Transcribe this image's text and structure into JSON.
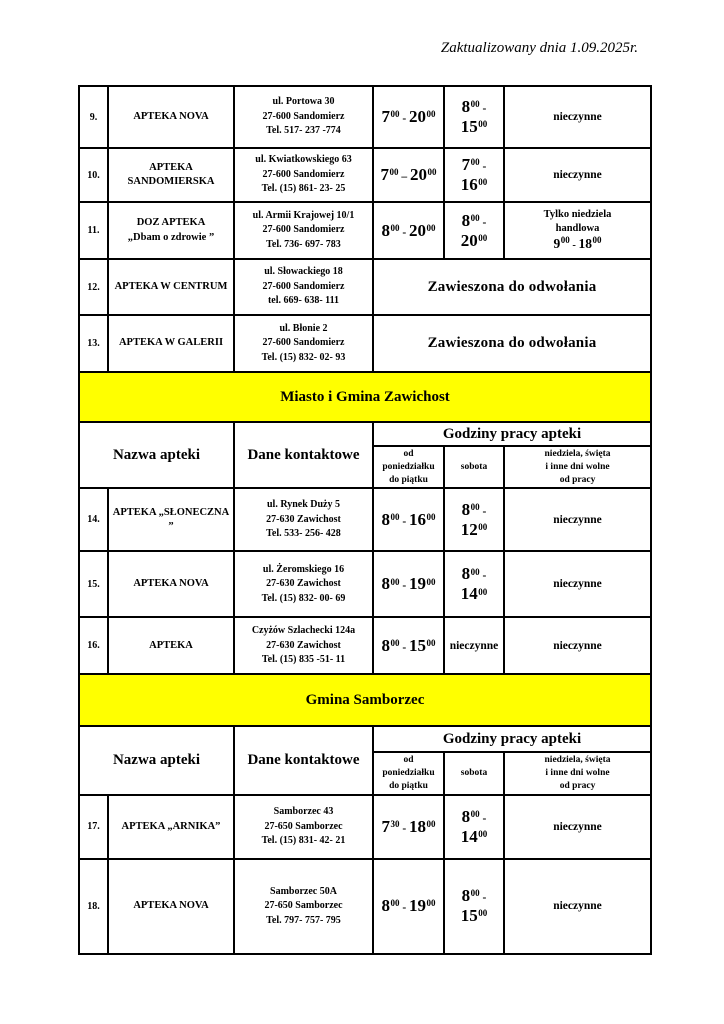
{
  "page": {
    "updated_note": "Zaktualizowany dnia 1.09.2025r."
  },
  "table": {
    "headers": {
      "name": "Nazwa apteki",
      "contact": "Dane kontaktowe",
      "hours_group": "Godziny pracy apteki",
      "weekdays": "od\nponiedziałku\ndo piątku",
      "saturday": "sobota",
      "sunday": "niedziela, święta\ni inne dni wolne\nod pracy"
    },
    "sections": [
      {
        "title": "Miasto i Gmina Zawichost"
      },
      {
        "title": "Gmina Samborzec"
      }
    ],
    "rows": [
      {
        "no": "9.",
        "name": "APTEKA NOVA",
        "contact": "ul. Portowa 30\n27-600 Sandomierz\nTel. 517- 237 -774",
        "weekdays": "7^00^ - 20^00^",
        "saturday": "8^00^ - 15^00^",
        "sunday": "nieczynne"
      },
      {
        "no": "10.",
        "name": "APTEKA SANDOMIERSKA",
        "contact": "ul. Kwiatkowskiego 63\n27-600 Sandomierz\nTel. (15) 861- 23- 25",
        "weekdays": "7^00^ – 20^00^",
        "saturday": "7^00^ - 16^00^",
        "sunday": "nieczynne"
      },
      {
        "no": "11.",
        "name": "DOZ APTEKA\n„Dbam o zdrowie ”",
        "contact": "ul. Armii Krajowej 10/1\n27-600 Sandomierz\nTel. 736- 697- 783",
        "weekdays": "8^00^ - 20^00^",
        "saturday": "8^00^ - 20^00^",
        "sunday": "Tylko niedziela\nhandlowa\n9^00^ - 18^00^"
      },
      {
        "no": "12.",
        "name": "APTEKA W CENTRUM",
        "contact": "ul. Słowackiego 18\n27-600 Sandomierz\ntel. 669- 638- 111",
        "status": "Zawieszona do odwołania"
      },
      {
        "no": "13.",
        "name": "APTEKA W GALERII",
        "contact": "ul. Błonie 2\n27-600 Sandomierz\nTel. (15) 832- 02- 93",
        "status": "Zawieszona do odwołania"
      },
      {
        "no": "14.",
        "name": "APTEKA „SŁONECZNA ”",
        "contact": "ul. Rynek Duży 5\n27-630 Zawichost\nTel. 533- 256- 428",
        "weekdays": "8^00^ - 16^00^",
        "saturday": "8^00^ - 12^00^",
        "sunday": "nieczynne"
      },
      {
        "no": "15.",
        "name": "APTEKA NOVA",
        "contact": "ul. Żeromskiego 16\n27-630 Zawichost\nTel. (15) 832- 00- 69",
        "weekdays": "8^00^ - 19^00^",
        "saturday": "8^00^ - 14^00^",
        "sunday": "nieczynne"
      },
      {
        "no": "16.",
        "name": "APTEKA",
        "contact": "Czyżów Szlachecki 124a\n27-630 Zawichost\nTel. (15) 835 -51- 11",
        "weekdays": "8^00^ - 15^00^",
        "saturday": "nieczynne",
        "sunday": "nieczynne"
      },
      {
        "no": "17.",
        "name": "APTEKA „ARNIKA”",
        "contact": "Samborzec 43\n27-650 Samborzec\nTel. (15) 831- 42- 21",
        "weekdays": "7^30^ - 18^00^",
        "saturday": "8^00^ - 14^00^",
        "sunday": "nieczynne"
      },
      {
        "no": "18.",
        "name": "APTEKA NOVA",
        "contact": "Samborzec 50A\n27-650 Samborzec\nTel. 797- 757- 795",
        "weekdays": "8^00^ - 19^00^",
        "saturday": "8^00^ - 15^00^",
        "sunday": "nieczynne"
      }
    ],
    "colors": {
      "section_bg": "#FFFF00",
      "border": "#000000",
      "text": "#000000"
    }
  }
}
